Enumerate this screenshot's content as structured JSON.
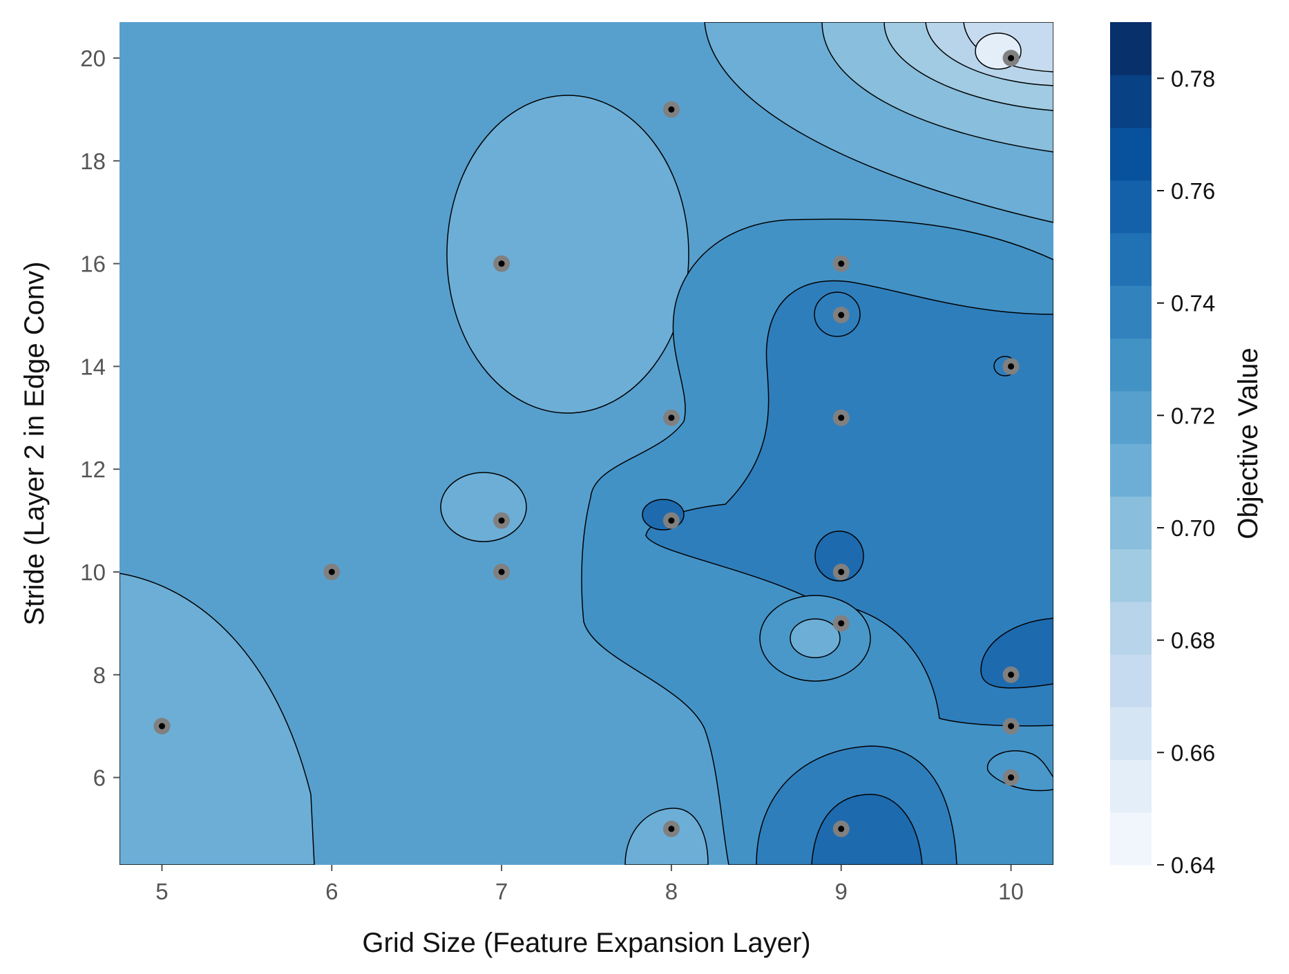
{
  "chart_data": {
    "type": "contour",
    "xlabel": "Grid Size (Feature Expansion Layer)",
    "ylabel": "Stride (Layer 2 in Edge Conv)",
    "colorbar_label": "Objective Value",
    "xlim": [
      4.75,
      10.25
    ],
    "ylim": [
      4.3,
      20.7
    ],
    "x_ticks": [
      5,
      6,
      7,
      8,
      9,
      10
    ],
    "y_ticks": [
      6,
      8,
      10,
      12,
      14,
      16,
      18,
      20
    ],
    "colorbar_range": [
      0.64,
      0.79
    ],
    "colorbar_ticks": [
      "0.64",
      "0.66",
      "0.68",
      "0.70",
      "0.72",
      "0.74",
      "0.76",
      "0.78"
    ],
    "colormap": "Blues",
    "background_level_color": "#57a0ce",
    "grid": false,
    "trials": [
      {
        "x": 5,
        "y": 7
      },
      {
        "x": 6,
        "y": 10
      },
      {
        "x": 7,
        "y": 16
      },
      {
        "x": 7,
        "y": 11
      },
      {
        "x": 7,
        "y": 10
      },
      {
        "x": 8,
        "y": 19
      },
      {
        "x": 8,
        "y": 13
      },
      {
        "x": 8,
        "y": 11
      },
      {
        "x": 8,
        "y": 5
      },
      {
        "x": 9,
        "y": 16
      },
      {
        "x": 9,
        "y": 15
      },
      {
        "x": 9,
        "y": 13
      },
      {
        "x": 9,
        "y": 10
      },
      {
        "x": 9,
        "y": 9
      },
      {
        "x": 9,
        "y": 5
      },
      {
        "x": 10,
        "y": 20
      },
      {
        "x": 10,
        "y": 14
      },
      {
        "x": 10,
        "y": 8
      },
      {
        "x": 10,
        "y": 7
      },
      {
        "x": 10,
        "y": 6
      }
    ]
  }
}
